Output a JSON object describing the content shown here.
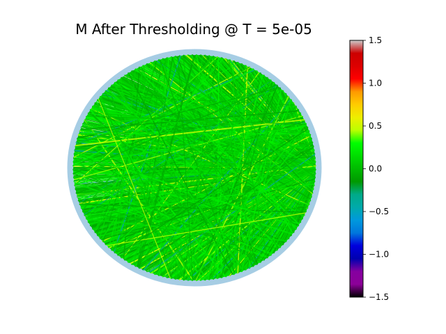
{
  "chart_data": {
    "type": "chord-diagram",
    "title": "M After Thresholding @ T = 5e-05",
    "node_ring_color": "#a6cde4",
    "hub_position": "right",
    "colorbar": {
      "colormap": "nipy_spectral",
      "vmin": -1.5,
      "vmax": 1.5,
      "ticks": [
        -1.5,
        -1.0,
        -0.5,
        0.0,
        0.5,
        1.0,
        1.5
      ],
      "tick_labels": [
        "−1.5",
        "−1.0",
        "−0.5",
        "0.0",
        "0.5",
        "1.0",
        "1.5"
      ]
    },
    "edge_value_distribution": {
      "dominant_range": [
        -0.1,
        0.25
      ],
      "typical": 0.05,
      "occasional_high": 0.5,
      "occasional_low": -0.4
    }
  }
}
